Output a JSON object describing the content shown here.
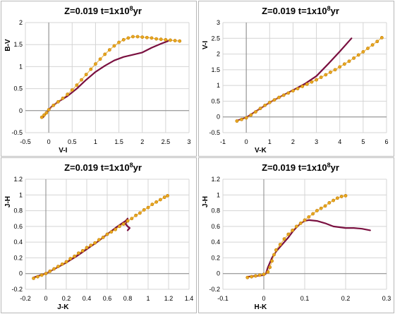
{
  "colors": {
    "model_a": "#7a1040",
    "model_b": "#e8a820",
    "marker_edge": "#c07800",
    "grid": "#d4d4d4"
  },
  "chart_data": [
    {
      "type": "line",
      "title": "Z=0.019 t=1x10⁸yr",
      "title_parts": {
        "z": "Z=0.019",
        "t_prefix": "t=1x10",
        "t_exp": "8",
        "t_suffix": "yr"
      },
      "xlabel": "V-I",
      "ylabel": "B-V",
      "xlim": [
        -0.5,
        3
      ],
      "ylim": [
        -0.5,
        2
      ],
      "xticks": [
        "-0.5",
        "0",
        "0.5",
        "1",
        "1.5",
        "2",
        "2.5",
        "3"
      ],
      "yticks": [
        "-0.5",
        "0",
        "0.5",
        "1",
        "1.5",
        "2"
      ],
      "grid": true,
      "series": [
        {
          "style": "line",
          "color_key": "model_a",
          "x": [
            -0.12,
            -0.05,
            0.05,
            0.2,
            0.4,
            0.6,
            0.8,
            1.0,
            1.2,
            1.4,
            1.6,
            1.8,
            2.0,
            2.2,
            2.4,
            2.55
          ],
          "y": [
            -0.15,
            -0.05,
            0.08,
            0.2,
            0.33,
            0.5,
            0.7,
            0.88,
            1.02,
            1.14,
            1.22,
            1.27,
            1.32,
            1.43,
            1.52,
            1.58
          ]
        },
        {
          "style": "markers",
          "color_key": "model_b",
          "x": [
            -0.15,
            -0.1,
            -0.05,
            0.0,
            0.1,
            0.2,
            0.3,
            0.4,
            0.5,
            0.6,
            0.7,
            0.8,
            0.9,
            1.0,
            1.1,
            1.2,
            1.3,
            1.4,
            1.5,
            1.6,
            1.7,
            1.8,
            1.9,
            2.0,
            2.1,
            2.2,
            2.3,
            2.4,
            2.5,
            2.6,
            2.7,
            2.8
          ],
          "y": [
            -0.15,
            -0.1,
            -0.05,
            0.02,
            0.12,
            0.2,
            0.28,
            0.37,
            0.47,
            0.58,
            0.7,
            0.82,
            0.94,
            1.06,
            1.17,
            1.28,
            1.38,
            1.47,
            1.55,
            1.61,
            1.65,
            1.68,
            1.68,
            1.67,
            1.66,
            1.65,
            1.63,
            1.62,
            1.61,
            1.6,
            1.59,
            1.58
          ]
        }
      ]
    },
    {
      "type": "line",
      "title": "Z=0.019 t=1x10⁸yr",
      "title_parts": {
        "z": "Z=0.019",
        "t_prefix": "t=1x10",
        "t_exp": "8",
        "t_suffix": "yr"
      },
      "xlabel": "V-K",
      "ylabel": "V-I",
      "xlim": [
        -1,
        6
      ],
      "ylim": [
        -0.5,
        3
      ],
      "xticks": [
        "-1",
        "0",
        "1",
        "2",
        "3",
        "4",
        "5",
        "6"
      ],
      "yticks": [
        "-0.5",
        "0",
        "0.5",
        "1",
        "1.5",
        "2",
        "2.5",
        "3"
      ],
      "grid": true,
      "series": [
        {
          "style": "line",
          "color_key": "model_a",
          "x": [
            -0.4,
            0.0,
            0.5,
            1.0,
            1.5,
            2.0,
            2.5,
            3.0,
            3.5,
            4.0,
            4.5
          ],
          "y": [
            -0.12,
            -0.02,
            0.22,
            0.46,
            0.66,
            0.85,
            1.05,
            1.3,
            1.68,
            2.08,
            2.5
          ]
        },
        {
          "style": "markers",
          "color_key": "model_b",
          "x": [
            -0.4,
            -0.2,
            0.0,
            0.2,
            0.4,
            0.6,
            0.8,
            1.0,
            1.2,
            1.4,
            1.6,
            1.8,
            2.0,
            2.2,
            2.4,
            2.6,
            2.8,
            3.0,
            3.2,
            3.4,
            3.6,
            3.8,
            4.0,
            4.2,
            4.4,
            4.6,
            4.8,
            5.0,
            5.2,
            5.4,
            5.6,
            5.8
          ],
          "y": [
            -0.13,
            -0.08,
            -0.03,
            0.06,
            0.16,
            0.27,
            0.37,
            0.46,
            0.54,
            0.62,
            0.69,
            0.76,
            0.83,
            0.9,
            0.97,
            1.04,
            1.11,
            1.18,
            1.26,
            1.34,
            1.42,
            1.5,
            1.59,
            1.68,
            1.77,
            1.87,
            1.97,
            2.07,
            2.18,
            2.29,
            2.4,
            2.52
          ]
        }
      ]
    },
    {
      "type": "line",
      "title": "Z=0.019 t=1x10⁸yr",
      "title_parts": {
        "z": "Z=0.019",
        "t_prefix": "t=1x10",
        "t_exp": "8",
        "t_suffix": "yr"
      },
      "xlabel": "J-K",
      "ylabel": "J-H",
      "xlim": [
        -0.2,
        1.4
      ],
      "ylim": [
        -0.2,
        1.2
      ],
      "xticks": [
        "-0.2",
        "0",
        "0.2",
        "0.4",
        "0.6",
        "0.8",
        "1",
        "1.2",
        "1.4"
      ],
      "yticks": [
        "-0.2",
        "0",
        "0.2",
        "0.4",
        "0.6",
        "0.8",
        "1",
        "1.2"
      ],
      "grid": true,
      "series": [
        {
          "style": "line",
          "color_key": "model_a",
          "x": [
            -0.12,
            -0.05,
            0.0,
            0.1,
            0.2,
            0.3,
            0.4,
            0.5,
            0.6,
            0.7,
            0.78,
            0.8,
            0.78,
            0.8,
            0.82,
            0.8
          ],
          "y": [
            -0.05,
            -0.02,
            0.0,
            0.07,
            0.14,
            0.22,
            0.31,
            0.4,
            0.5,
            0.6,
            0.67,
            0.7,
            0.63,
            0.6,
            0.58,
            0.55
          ]
        },
        {
          "style": "markers",
          "color_key": "model_b",
          "x": [
            -0.12,
            -0.08,
            -0.04,
            0.0,
            0.04,
            0.08,
            0.12,
            0.16,
            0.2,
            0.24,
            0.28,
            0.32,
            0.36,
            0.4,
            0.44,
            0.48,
            0.52,
            0.56,
            0.6,
            0.64,
            0.68,
            0.72,
            0.76,
            0.8,
            0.84,
            0.88,
            0.92,
            0.96,
            1.0,
            1.04,
            1.08,
            1.12,
            1.16,
            1.19
          ],
          "y": [
            -0.06,
            -0.04,
            -0.02,
            0.0,
            0.03,
            0.06,
            0.09,
            0.12,
            0.15,
            0.19,
            0.22,
            0.26,
            0.29,
            0.33,
            0.36,
            0.39,
            0.43,
            0.46,
            0.5,
            0.53,
            0.56,
            0.6,
            0.63,
            0.67,
            0.7,
            0.74,
            0.77,
            0.81,
            0.84,
            0.88,
            0.91,
            0.94,
            0.97,
            0.99
          ]
        }
      ]
    },
    {
      "type": "line",
      "title": "Z=0.019 t=1x10⁸yr",
      "title_parts": {
        "z": "Z=0.019",
        "t_prefix": "t=1x10",
        "t_exp": "8",
        "t_suffix": "yr"
      },
      "xlabel": "H-K",
      "ylabel": "J-H",
      "xlim": [
        -0.1,
        0.3
      ],
      "ylim": [
        -0.2,
        1.2
      ],
      "xticks": [
        "-0.1",
        "0",
        "0.1",
        "0.2",
        "0.3"
      ],
      "yticks": [
        "-0.2",
        "0",
        "0.2",
        "0.4",
        "0.6",
        "0.8",
        "1",
        "1.2"
      ],
      "grid": true,
      "series": [
        {
          "style": "line",
          "color_key": "model_a",
          "x": [
            -0.04,
            -0.02,
            0.0,
            0.005,
            0.01,
            0.02,
            0.03,
            0.04,
            0.05,
            0.06,
            0.07,
            0.08,
            0.09,
            0.1,
            0.11,
            0.13,
            0.15,
            0.17,
            0.2,
            0.22,
            0.24,
            0.26
          ],
          "y": [
            -0.04,
            -0.03,
            -0.02,
            0.0,
            0.08,
            0.2,
            0.28,
            0.34,
            0.4,
            0.46,
            0.53,
            0.59,
            0.64,
            0.67,
            0.68,
            0.67,
            0.64,
            0.6,
            0.58,
            0.58,
            0.57,
            0.55
          ]
        },
        {
          "style": "markers",
          "color_key": "model_b",
          "x": [
            -0.04,
            -0.03,
            -0.02,
            -0.01,
            0.0,
            0.01,
            0.015,
            0.02,
            0.025,
            0.03,
            0.04,
            0.05,
            0.06,
            0.07,
            0.08,
            0.09,
            0.1,
            0.11,
            0.12,
            0.13,
            0.14,
            0.15,
            0.16,
            0.17,
            0.18,
            0.19,
            0.2
          ],
          "y": [
            -0.05,
            -0.04,
            -0.03,
            -0.02,
            -0.01,
            0.02,
            0.08,
            0.16,
            0.24,
            0.3,
            0.37,
            0.44,
            0.5,
            0.55,
            0.6,
            0.64,
            0.68,
            0.72,
            0.76,
            0.8,
            0.83,
            0.86,
            0.9,
            0.93,
            0.96,
            0.98,
            0.99
          ]
        }
      ]
    }
  ]
}
